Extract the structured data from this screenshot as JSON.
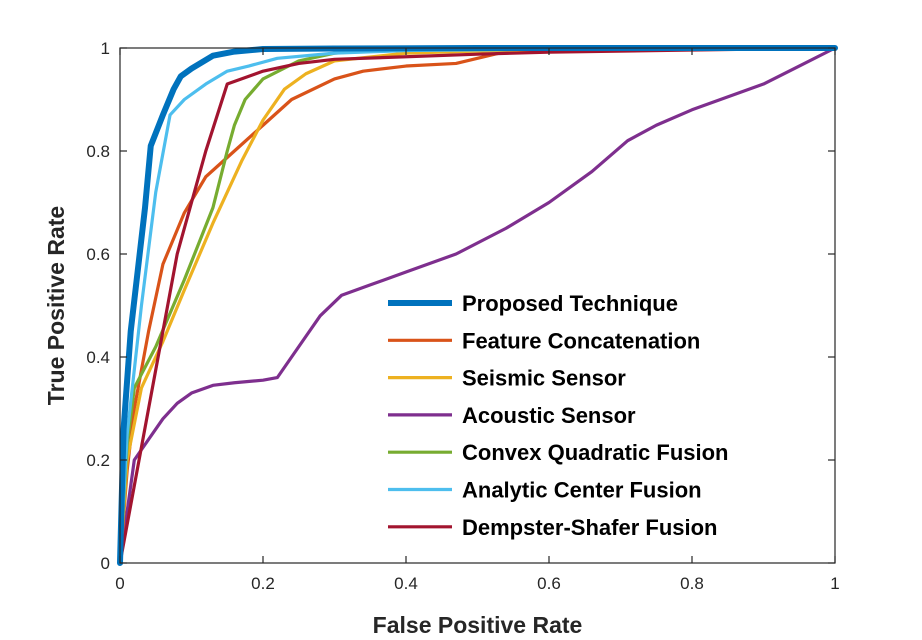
{
  "chart_data": {
    "type": "line",
    "title": "",
    "xlabel": "False Positive Rate",
    "ylabel": "True Positive Rate",
    "xlim": [
      0,
      1
    ],
    "ylim": [
      0,
      1
    ],
    "xticks": [
      "0",
      "0.2",
      "0.4",
      "0.6",
      "0.8",
      "1"
    ],
    "yticks": [
      "0",
      "0.2",
      "0.4",
      "0.6",
      "0.8",
      "1"
    ],
    "grid": false,
    "legend_position": "bottom-right",
    "series": [
      {
        "name": "Proposed Technique",
        "color": "#0072BD",
        "x": [
          0,
          0.005,
          0.015,
          0.025,
          0.035,
          0.043,
          0.06,
          0.075,
          0.085,
          0.1,
          0.13,
          0.16,
          0.2,
          0.3,
          0.5,
          1
        ],
        "y": [
          0,
          0.26,
          0.45,
          0.57,
          0.69,
          0.81,
          0.87,
          0.92,
          0.945,
          0.96,
          0.985,
          0.993,
          0.998,
          0.999,
          1,
          1
        ]
      },
      {
        "name": "Feature Concatenation",
        "color": "#D95319",
        "x": [
          0,
          0.01,
          0.02,
          0.04,
          0.06,
          0.09,
          0.12,
          0.16,
          0.2,
          0.24,
          0.3,
          0.34,
          0.4,
          0.47,
          0.53,
          0.6,
          1
        ],
        "y": [
          0,
          0.18,
          0.3,
          0.45,
          0.58,
          0.68,
          0.75,
          0.8,
          0.85,
          0.9,
          0.94,
          0.955,
          0.965,
          0.97,
          0.99,
          0.995,
          1
        ]
      },
      {
        "name": "Seismic Sensor",
        "color": "#EDB120",
        "x": [
          0,
          0.01,
          0.03,
          0.06,
          0.09,
          0.13,
          0.17,
          0.2,
          0.23,
          0.26,
          0.3,
          0.4,
          0.6,
          1
        ],
        "y": [
          0,
          0.2,
          0.34,
          0.43,
          0.53,
          0.66,
          0.78,
          0.86,
          0.92,
          0.95,
          0.975,
          0.99,
          0.998,
          1
        ]
      },
      {
        "name": "Acoustic Sensor",
        "color": "#7E2F8E",
        "x": [
          0,
          0.01,
          0.02,
          0.04,
          0.06,
          0.08,
          0.1,
          0.13,
          0.16,
          0.2,
          0.22,
          0.24,
          0.26,
          0.28,
          0.31,
          0.35,
          0.4,
          0.47,
          0.54,
          0.6,
          0.66,
          0.71,
          0.75,
          0.8,
          0.85,
          0.9,
          0.95,
          1
        ],
        "y": [
          0,
          0.1,
          0.2,
          0.24,
          0.28,
          0.31,
          0.33,
          0.345,
          0.35,
          0.355,
          0.36,
          0.4,
          0.44,
          0.48,
          0.52,
          0.54,
          0.565,
          0.6,
          0.65,
          0.7,
          0.76,
          0.82,
          0.85,
          0.88,
          0.905,
          0.93,
          0.965,
          1
        ]
      },
      {
        "name": "Convex Quadratic Fusion",
        "color": "#77AC30",
        "x": [
          0,
          0.01,
          0.02,
          0.05,
          0.09,
          0.13,
          0.15,
          0.16,
          0.175,
          0.2,
          0.25,
          0.3,
          0.35,
          0.4,
          0.5,
          1
        ],
        "y": [
          0,
          0.23,
          0.34,
          0.42,
          0.55,
          0.69,
          0.8,
          0.85,
          0.9,
          0.94,
          0.975,
          0.99,
          0.995,
          1,
          1,
          1
        ]
      },
      {
        "name": "Analytic Center Fusion",
        "color": "#4DBEEE",
        "x": [
          0,
          0.01,
          0.03,
          0.05,
          0.07,
          0.09,
          0.12,
          0.15,
          0.18,
          0.22,
          0.3,
          0.4,
          0.6,
          1
        ],
        "y": [
          0,
          0.25,
          0.5,
          0.72,
          0.87,
          0.9,
          0.93,
          0.955,
          0.965,
          0.98,
          0.99,
          0.995,
          0.998,
          1
        ]
      },
      {
        "name": "Dempster-Shafer Fusion",
        "color": "#A2142F",
        "x": [
          0,
          0.02,
          0.04,
          0.06,
          0.08,
          0.1,
          0.12,
          0.15,
          0.2,
          0.25,
          0.3,
          0.4,
          0.5,
          0.6,
          0.8,
          1
        ],
        "y": [
          0,
          0.15,
          0.3,
          0.45,
          0.6,
          0.7,
          0.8,
          0.93,
          0.955,
          0.97,
          0.978,
          0.983,
          0.988,
          0.992,
          0.996,
          1
        ]
      }
    ]
  }
}
